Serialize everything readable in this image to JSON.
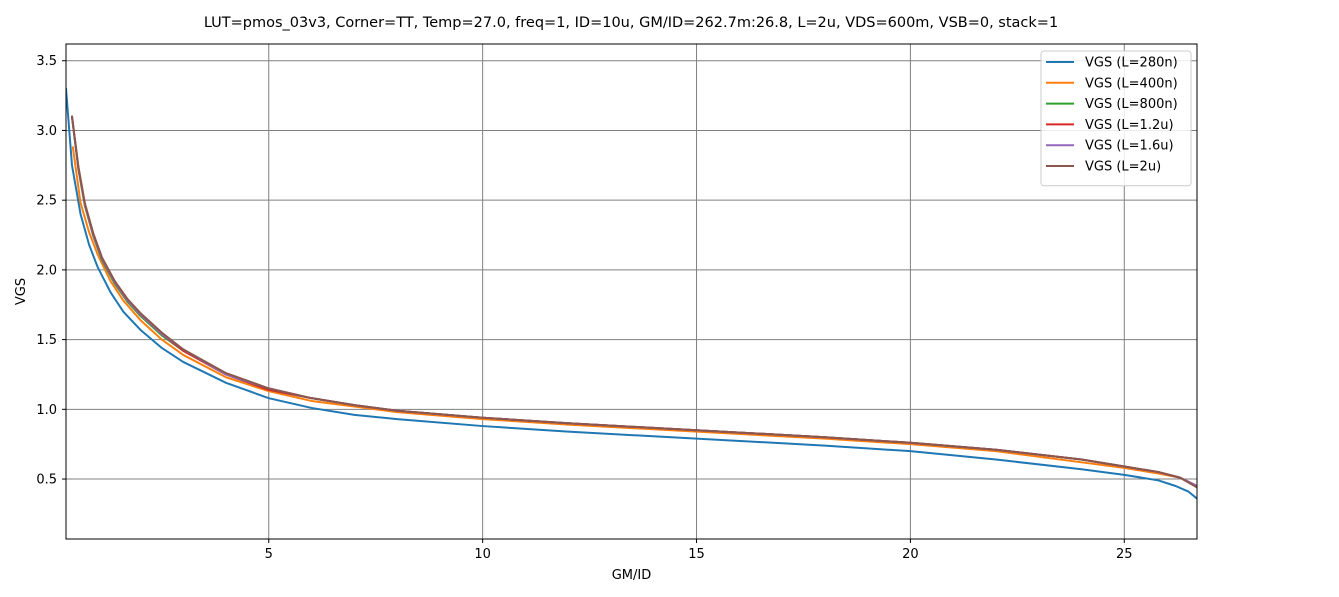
{
  "chart_data": {
    "type": "line",
    "title": "LUT=pmos_03v3, Corner=TT, Temp=27.0, freq=1, ID=10u, GM/ID=262.7m:26.8, L=2u, VDS=600m, VSB=0, stack=1",
    "xlabel": "GM/ID",
    "ylabel": "VGS",
    "xlim": [
      0.26,
      26.7
    ],
    "ylim": [
      0.07,
      3.62
    ],
    "xticks": [
      5,
      10,
      15,
      20,
      25
    ],
    "xtick_labels": [
      "5",
      "10",
      "15",
      "20",
      "25"
    ],
    "yticks": [
      0.5,
      1.0,
      1.5,
      2.0,
      2.5,
      3.0,
      3.5
    ],
    "ytick_labels": [
      "0.5",
      "1.0",
      "1.5",
      "2.0",
      "2.5",
      "3.0",
      "3.5"
    ],
    "grid": true,
    "legend_position": "top-right",
    "series": [
      {
        "name": "VGS (L=280n)",
        "color": "#1f77b4",
        "x": [
          0.26,
          0.4,
          0.6,
          0.8,
          1.0,
          1.3,
          1.6,
          2.0,
          2.5,
          3.0,
          4.0,
          5.0,
          6.0,
          7.0,
          8.0,
          10.0,
          12.0,
          15.0,
          18.0,
          20.0,
          22.0,
          24.0,
          25.0,
          25.8,
          26.2,
          26.5,
          26.7
        ],
        "y": [
          3.3,
          2.75,
          2.4,
          2.18,
          2.02,
          1.84,
          1.7,
          1.57,
          1.44,
          1.34,
          1.19,
          1.08,
          1.01,
          0.96,
          0.93,
          0.88,
          0.84,
          0.79,
          0.74,
          0.7,
          0.64,
          0.57,
          0.53,
          0.49,
          0.45,
          0.41,
          0.36
        ]
      },
      {
        "name": "VGS (L=400n)",
        "color": "#ff7f0e",
        "x": [
          0.42,
          0.6,
          0.8,
          1.0,
          1.3,
          1.6,
          2.0,
          2.5,
          3.0,
          4.0,
          5.0,
          6.0,
          7.0,
          8.0,
          10.0,
          12.0,
          15.0,
          18.0,
          20.0,
          22.0,
          24.0,
          25.0,
          25.8,
          26.3,
          26.7
        ],
        "y": [
          2.88,
          2.48,
          2.27,
          2.11,
          1.92,
          1.78,
          1.64,
          1.5,
          1.39,
          1.23,
          1.13,
          1.06,
          1.02,
          0.98,
          0.93,
          0.89,
          0.84,
          0.79,
          0.75,
          0.7,
          0.62,
          0.58,
          0.54,
          0.51,
          0.45
        ]
      },
      {
        "name": "VGS (L=800n)",
        "color": "#2ca02c",
        "x": [
          0.4,
          0.55,
          0.7,
          0.9,
          1.1,
          1.4,
          1.7,
          2.0,
          2.5,
          3.0,
          4.0,
          5.0,
          6.0,
          7.0,
          8.0,
          10.0,
          12.0,
          15.0,
          18.0,
          20.0,
          22.0,
          24.0,
          25.0,
          25.8,
          26.3,
          26.7
        ],
        "y": [
          3.1,
          2.72,
          2.46,
          2.24,
          2.07,
          1.9,
          1.77,
          1.67,
          1.53,
          1.42,
          1.25,
          1.14,
          1.08,
          1.03,
          0.99,
          0.94,
          0.9,
          0.85,
          0.8,
          0.76,
          0.71,
          0.64,
          0.59,
          0.55,
          0.51,
          0.45
        ]
      },
      {
        "name": "VGS (L=1.2u)",
        "color": "#d62728",
        "x": [
          0.4,
          0.55,
          0.7,
          0.9,
          1.1,
          1.4,
          1.7,
          2.0,
          2.5,
          3.0,
          4.0,
          5.0,
          6.0,
          7.0,
          8.0,
          10.0,
          12.0,
          15.0,
          18.0,
          20.0,
          22.0,
          24.0,
          25.0,
          25.8,
          26.3,
          26.7
        ],
        "y": [
          3.1,
          2.73,
          2.47,
          2.25,
          2.08,
          1.91,
          1.78,
          1.68,
          1.54,
          1.42,
          1.25,
          1.14,
          1.08,
          1.03,
          0.99,
          0.94,
          0.9,
          0.85,
          0.8,
          0.76,
          0.71,
          0.64,
          0.59,
          0.55,
          0.51,
          0.45
        ]
      },
      {
        "name": "VGS (L=1.6u)",
        "color": "#9467bd",
        "x": [
          0.4,
          0.55,
          0.7,
          0.9,
          1.1,
          1.4,
          1.7,
          2.0,
          2.5,
          3.0,
          4.0,
          5.0,
          6.0,
          7.0,
          8.0,
          10.0,
          12.0,
          15.0,
          18.0,
          20.0,
          22.0,
          24.0,
          25.0,
          25.8,
          26.3,
          26.7
        ],
        "y": [
          3.1,
          2.73,
          2.47,
          2.25,
          2.08,
          1.91,
          1.78,
          1.68,
          1.54,
          1.43,
          1.25,
          1.15,
          1.08,
          1.03,
          0.99,
          0.94,
          0.9,
          0.85,
          0.8,
          0.76,
          0.71,
          0.64,
          0.59,
          0.55,
          0.51,
          0.45
        ]
      },
      {
        "name": "VGS (L=2u)",
        "color": "#8c564b",
        "x": [
          0.4,
          0.55,
          0.7,
          0.9,
          1.1,
          1.4,
          1.7,
          2.0,
          2.5,
          3.0,
          4.0,
          5.0,
          6.0,
          7.0,
          8.0,
          10.0,
          12.0,
          15.0,
          18.0,
          20.0,
          22.0,
          24.0,
          25.0,
          25.8,
          26.3,
          26.7
        ],
        "y": [
          3.1,
          2.74,
          2.48,
          2.26,
          2.09,
          1.92,
          1.79,
          1.69,
          1.55,
          1.43,
          1.26,
          1.15,
          1.08,
          1.03,
          0.99,
          0.94,
          0.9,
          0.85,
          0.8,
          0.76,
          0.71,
          0.64,
          0.59,
          0.55,
          0.51,
          0.44
        ]
      }
    ]
  }
}
